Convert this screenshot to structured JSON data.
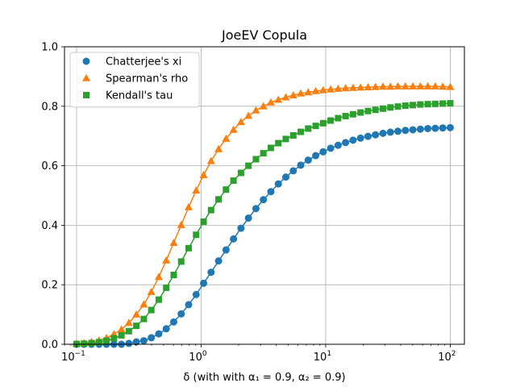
{
  "chart_data": {
    "type": "line",
    "title": "JoeEV Copula",
    "xlabel": "δ (with with α₁ = 0.9, α₂ = 0.9)",
    "ylabel": "",
    "xscale": "log",
    "xlim": [
      0.08,
      130
    ],
    "ylim": [
      0.0,
      1.0
    ],
    "grid": true,
    "legend_position": "top-left",
    "x_ticks": [
      {
        "value": 0.1,
        "base": "10",
        "exp": "−1"
      },
      {
        "value": 1,
        "base": "10",
        "exp": "0"
      },
      {
        "value": 10,
        "base": "10",
        "exp": "1"
      },
      {
        "value": 100,
        "base": "10",
        "exp": "2"
      }
    ],
    "y_ticks": [
      {
        "value": 0.0,
        "label": "0.0"
      },
      {
        "value": 0.2,
        "label": "0.2"
      },
      {
        "value": 0.4,
        "label": "0.4"
      },
      {
        "value": 0.6,
        "label": "0.6"
      },
      {
        "value": 0.8,
        "label": "0.8"
      },
      {
        "value": 1.0,
        "label": "1.0"
      }
    ],
    "x": [
      0.1,
      0.1148,
      0.1318,
      0.1514,
      0.1738,
      0.1995,
      0.2291,
      0.263,
      0.302,
      0.3467,
      0.3981,
      0.4571,
      0.5248,
      0.6026,
      0.6918,
      0.7943,
      0.912,
      1.0471,
      1.2023,
      1.3804,
      1.5849,
      1.8197,
      2.0893,
      2.3988,
      2.7542,
      3.1623,
      3.6308,
      4.1687,
      4.7863,
      5.4954,
      6.3096,
      7.2444,
      8.3176,
      9.5499,
      10.965,
      12.589,
      14.454,
      16.596,
      19.055,
      21.878,
      25.119,
      28.84,
      33.113,
      38.019,
      43.652,
      50.119,
      57.544,
      66.069,
      75.858,
      87.096,
      100.0
    ],
    "series": [
      {
        "name": "Chatterjee's xi",
        "color": "#1f77b4",
        "marker": "circle",
        "values": [
          0.0,
          0.0,
          0.0,
          0.0,
          0.0,
          0.0,
          0.0,
          0.003,
          0.008,
          0.012,
          0.022,
          0.035,
          0.052,
          0.075,
          0.102,
          0.133,
          0.167,
          0.205,
          0.242,
          0.28,
          0.317,
          0.354,
          0.39,
          0.424,
          0.456,
          0.486,
          0.513,
          0.539,
          0.562,
          0.583,
          0.602,
          0.619,
          0.634,
          0.647,
          0.659,
          0.669,
          0.678,
          0.686,
          0.693,
          0.699,
          0.704,
          0.709,
          0.713,
          0.716,
          0.719,
          0.721,
          0.723,
          0.725,
          0.726,
          0.727,
          0.728
        ]
      },
      {
        "name": "Spearman's rho",
        "color": "#ff7f0e",
        "marker": "triangle",
        "values": [
          0.002,
          0.004,
          0.008,
          0.013,
          0.021,
          0.034,
          0.05,
          0.072,
          0.1,
          0.134,
          0.176,
          0.226,
          0.282,
          0.341,
          0.401,
          0.461,
          0.517,
          0.569,
          0.616,
          0.656,
          0.691,
          0.721,
          0.747,
          0.768,
          0.786,
          0.8,
          0.813,
          0.822,
          0.83,
          0.837,
          0.843,
          0.847,
          0.851,
          0.854,
          0.857,
          0.859,
          0.861,
          0.862,
          0.863,
          0.864,
          0.865,
          0.866,
          0.866,
          0.867,
          0.867,
          0.867,
          0.867,
          0.867,
          0.867,
          0.866,
          0.865
        ]
      },
      {
        "name": "Kendall's tau",
        "color": "#2ca02c",
        "marker": "square",
        "values": [
          0.001,
          0.002,
          0.004,
          0.007,
          0.012,
          0.02,
          0.03,
          0.044,
          0.062,
          0.085,
          0.115,
          0.15,
          0.19,
          0.233,
          0.278,
          0.323,
          0.368,
          0.412,
          0.451,
          0.487,
          0.52,
          0.55,
          0.576,
          0.6,
          0.622,
          0.642,
          0.66,
          0.676,
          0.69,
          0.702,
          0.714,
          0.725,
          0.734,
          0.743,
          0.752,
          0.76,
          0.767,
          0.773,
          0.779,
          0.784,
          0.788,
          0.792,
          0.796,
          0.799,
          0.802,
          0.804,
          0.806,
          0.807,
          0.808,
          0.809,
          0.81
        ]
      }
    ]
  }
}
